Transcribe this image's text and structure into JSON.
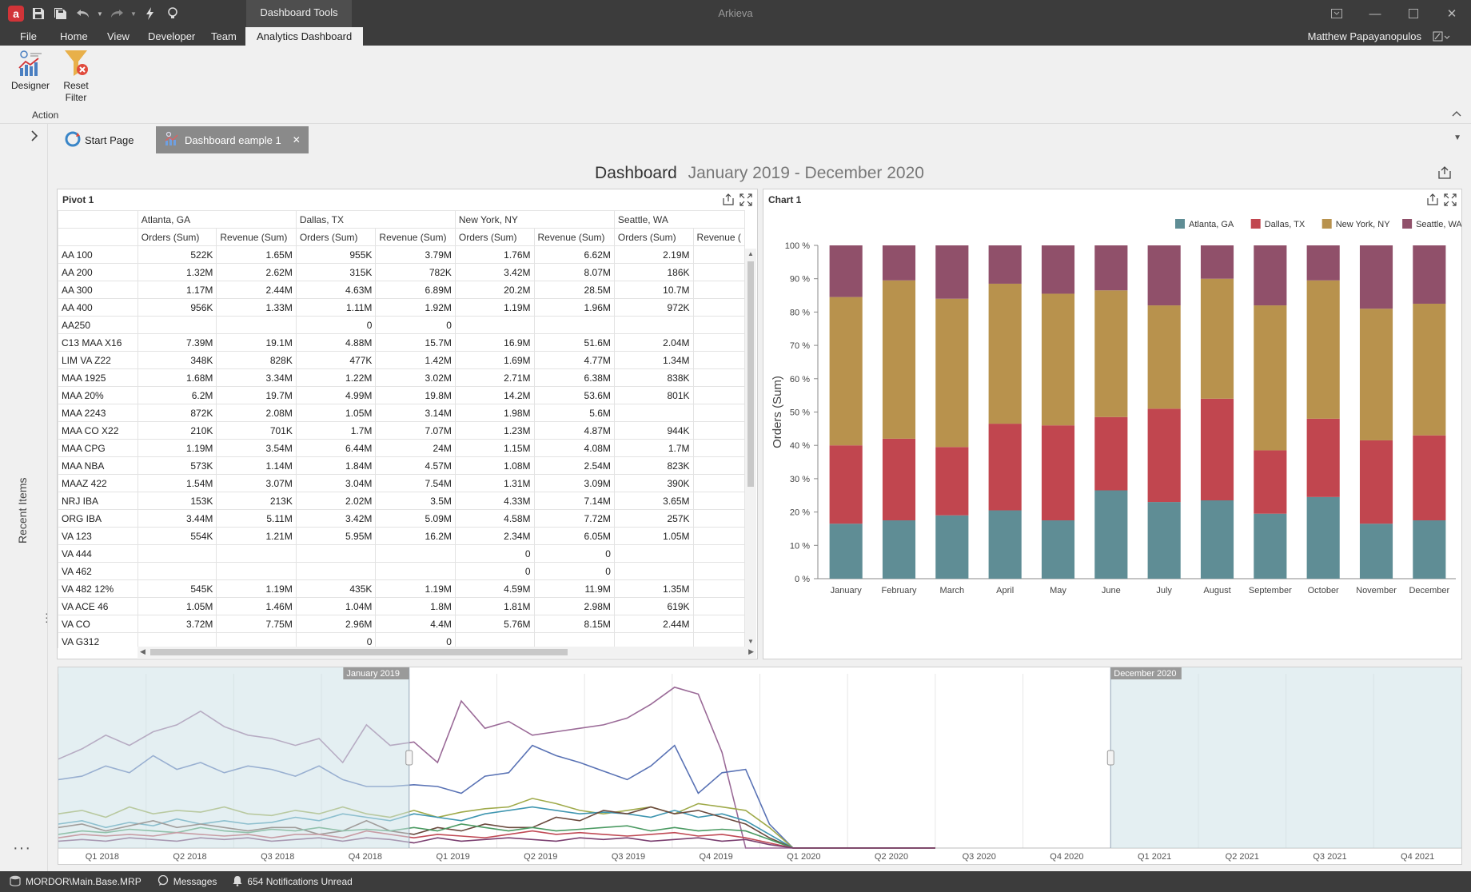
{
  "titlebar": {
    "app_title": "Arkieva",
    "contextual_tab": "Dashboard Tools",
    "logo_letter": "a"
  },
  "menu": {
    "items": [
      "File",
      "Home",
      "View",
      "Developer",
      "Team",
      "Analytics Dashboard"
    ],
    "active": "Analytics Dashboard",
    "user_name": "Matthew Papayanopulos"
  },
  "ribbon": {
    "designer_label": "Designer",
    "reset_filter_label_line1": "Reset",
    "reset_filter_label_line2": "Filter",
    "group_label": "Action"
  },
  "sidebar": {
    "recent_items_label": "Recent Items"
  },
  "tabs": {
    "start_page": "Start Page",
    "dashboard_tab": "Dashboard eample 1"
  },
  "dashboard": {
    "title": "Dashboard",
    "date_range": "January 2019 - December 2020"
  },
  "pivot": {
    "caption": "Pivot 1",
    "cities": [
      "Atlanta, GA",
      "Dallas, TX",
      "New York, NY",
      "Seattle, WA"
    ],
    "measures": [
      "Orders (Sum)",
      "Revenue (Sum)",
      "Orders (Sum)",
      "Revenue (Sum)",
      "Orders (Sum)",
      "Revenue (Sum)",
      "Orders (Sum)",
      "Revenue ("
    ],
    "rows": [
      {
        "label": "AA 100",
        "cells": [
          "522K",
          "1.65M",
          "955K",
          "3.79M",
          "1.76M",
          "6.62M",
          "2.19M",
          ""
        ]
      },
      {
        "label": "AA 200",
        "cells": [
          "1.32M",
          "2.62M",
          "315K",
          "782K",
          "3.42M",
          "8.07M",
          "186K",
          ""
        ]
      },
      {
        "label": "AA 300",
        "cells": [
          "1.17M",
          "2.44M",
          "4.63M",
          "6.89M",
          "20.2M",
          "28.5M",
          "10.7M",
          ""
        ]
      },
      {
        "label": "AA 400",
        "cells": [
          "956K",
          "1.33M",
          "1.11M",
          "1.92M",
          "1.19M",
          "1.96M",
          "972K",
          ""
        ]
      },
      {
        "label": "AA250",
        "cells": [
          "",
          "",
          "0",
          "0",
          "",
          "",
          "",
          ""
        ]
      },
      {
        "label": "C13 MAA X16",
        "cells": [
          "7.39M",
          "19.1M",
          "4.88M",
          "15.7M",
          "16.9M",
          "51.6M",
          "2.04M",
          ""
        ]
      },
      {
        "label": "LIM VA Z22",
        "cells": [
          "348K",
          "828K",
          "477K",
          "1.42M",
          "1.69M",
          "4.77M",
          "1.34M",
          ""
        ]
      },
      {
        "label": "MAA 1925",
        "cells": [
          "1.68M",
          "3.34M",
          "1.22M",
          "3.02M",
          "2.71M",
          "6.38M",
          "838K",
          ""
        ]
      },
      {
        "label": "MAA 20%",
        "cells": [
          "6.2M",
          "19.7M",
          "4.99M",
          "19.8M",
          "14.2M",
          "53.6M",
          "801K",
          ""
        ]
      },
      {
        "label": "MAA 2243",
        "cells": [
          "872K",
          "2.08M",
          "1.05M",
          "3.14M",
          "1.98M",
          "5.6M",
          "",
          ""
        ]
      },
      {
        "label": "MAA CO X22",
        "cells": [
          "210K",
          "701K",
          "1.7M",
          "7.07M",
          "1.23M",
          "4.87M",
          "944K",
          ""
        ]
      },
      {
        "label": "MAA CPG",
        "cells": [
          "1.19M",
          "3.54M",
          "6.44M",
          "24M",
          "1.15M",
          "4.08M",
          "1.7M",
          ""
        ]
      },
      {
        "label": "MAA NBA",
        "cells": [
          "573K",
          "1.14M",
          "1.84M",
          "4.57M",
          "1.08M",
          "2.54M",
          "823K",
          ""
        ]
      },
      {
        "label": "MAAZ 422",
        "cells": [
          "1.54M",
          "3.07M",
          "3.04M",
          "7.54M",
          "1.31M",
          "3.09M",
          "390K",
          ""
        ]
      },
      {
        "label": "NRJ IBA",
        "cells": [
          "153K",
          "213K",
          "2.02M",
          "3.5M",
          "4.33M",
          "7.14M",
          "3.65M",
          ""
        ]
      },
      {
        "label": "ORG IBA",
        "cells": [
          "3.44M",
          "5.11M",
          "3.42M",
          "5.09M",
          "4.58M",
          "7.72M",
          "257K",
          ""
        ]
      },
      {
        "label": "VA 123",
        "cells": [
          "554K",
          "1.21M",
          "5.95M",
          "16.2M",
          "2.34M",
          "6.05M",
          "1.05M",
          ""
        ]
      },
      {
        "label": "VA 444",
        "cells": [
          "",
          "",
          "",
          "",
          "0",
          "0",
          "",
          ""
        ]
      },
      {
        "label": "VA 462",
        "cells": [
          "",
          "",
          "",
          "",
          "0",
          "0",
          "",
          ""
        ]
      },
      {
        "label": "VA 482 12%",
        "cells": [
          "545K",
          "1.19M",
          "435K",
          "1.19M",
          "4.59M",
          "11.9M",
          "1.35M",
          ""
        ]
      },
      {
        "label": "VA ACE 46",
        "cells": [
          "1.05M",
          "1.46M",
          "1.04M",
          "1.8M",
          "1.81M",
          "2.98M",
          "619K",
          ""
        ]
      },
      {
        "label": "VA CO",
        "cells": [
          "3.72M",
          "7.75M",
          "2.96M",
          "4.4M",
          "5.76M",
          "8.15M",
          "2.44M",
          ""
        ]
      },
      {
        "label": "VA G312",
        "cells": [
          "",
          "",
          "0",
          "0",
          "",
          "",
          "",
          ""
        ]
      }
    ]
  },
  "chart": {
    "caption": "Chart 1"
  },
  "chart_data": [
    {
      "type": "bar",
      "stacked": "percent",
      "title": "Chart 1",
      "ylabel": "Orders (Sum)",
      "ylim": [
        0,
        100
      ],
      "legend_position": "top-right",
      "categories": [
        "January",
        "February",
        "March",
        "April",
        "May",
        "June",
        "July",
        "August",
        "September",
        "October",
        "November",
        "December"
      ],
      "y_ticks": [
        "0 %",
        "10 %",
        "20 %",
        "30 %",
        "40 %",
        "50 %",
        "60 %",
        "70 %",
        "80 %",
        "90 %",
        "100 %"
      ],
      "series": [
        {
          "name": "Atlanta, GA",
          "color": "#5f8d95",
          "values": [
            16.5,
            17.5,
            19,
            20.5,
            17.5,
            26.5,
            23,
            23.5,
            19.5,
            24.5,
            16.5,
            17.5
          ]
        },
        {
          "name": "Dallas, TX",
          "color": "#c1464f",
          "values": [
            23.5,
            24.5,
            20.5,
            26,
            28.5,
            22,
            28,
            30.5,
            19,
            23.5,
            25,
            25.5
          ]
        },
        {
          "name": "New York, NY",
          "color": "#b8924d",
          "values": [
            44.5,
            47.5,
            44.5,
            42,
            39.5,
            38,
            31,
            36,
            43.5,
            41.5,
            39.5,
            39.5
          ]
        },
        {
          "name": "Seattle, WA",
          "color": "#90506a",
          "values": [
            15.5,
            10.5,
            16,
            11.5,
            14.5,
            13.5,
            18,
            10,
            18,
            10.5,
            19,
            17.5
          ]
        }
      ]
    },
    {
      "type": "line",
      "role": "range-filter",
      "x_ticks": [
        "Q1 2018",
        "Q2 2018",
        "Q3 2018",
        "Q4 2018",
        "Q1 2019",
        "Q2 2019",
        "Q3 2019",
        "Q4 2019",
        "Q1 2020",
        "Q2 2020",
        "Q3 2020",
        "Q4 2020",
        "Q1 2021",
        "Q2 2021",
        "Q3 2021",
        "Q4 2021"
      ],
      "selection_start_label": "January 2019",
      "selection_end_label": "December 2020",
      "series": [
        {
          "color": "#9b6b98",
          "values": [
            52,
            58,
            66,
            60,
            68,
            72,
            80,
            71,
            66,
            64,
            60,
            64,
            50,
            72,
            60,
            62,
            50,
            86,
            70,
            74,
            66,
            68,
            70,
            72,
            76,
            84,
            94,
            90,
            56,
            0,
            0,
            0,
            0,
            0,
            0,
            0,
            0,
            0
          ]
        },
        {
          "color": "#5a73b5",
          "values": [
            40,
            42,
            48,
            44,
            54,
            46,
            50,
            44,
            48,
            46,
            42,
            48,
            40,
            36,
            36,
            37,
            36,
            32,
            42,
            44,
            60,
            54,
            50,
            45,
            40,
            48,
            60,
            32,
            44,
            46,
            14,
            0,
            0,
            0,
            0,
            0,
            0,
            0
          ]
        },
        {
          "color": "#9faa4a",
          "values": [
            20,
            22,
            18,
            24,
            20,
            22,
            21,
            24,
            20,
            19,
            22,
            20,
            24,
            20,
            18,
            22,
            18,
            21,
            23,
            24,
            29,
            26,
            22,
            20,
            22,
            24,
            20,
            26,
            24,
            22,
            12,
            0,
            0,
            0,
            0,
            0,
            0,
            0
          ]
        },
        {
          "color": "#3f96b0",
          "values": [
            14,
            16,
            12,
            15,
            13,
            17,
            14,
            16,
            14,
            15,
            18,
            16,
            20,
            18,
            16,
            20,
            18,
            16,
            20,
            22,
            24,
            22,
            20,
            21,
            20,
            18,
            22,
            18,
            20,
            16,
            8,
            0,
            0,
            0,
            0,
            0,
            0,
            0
          ]
        },
        {
          "color": "#6b4a3e",
          "values": [
            12,
            14,
            10,
            13,
            16,
            12,
            14,
            12,
            10,
            12,
            12,
            8,
            10,
            16,
            10,
            8,
            12,
            10,
            14,
            12,
            12,
            18,
            16,
            22,
            20,
            24,
            20,
            22,
            18,
            14,
            6,
            0,
            0,
            0,
            0,
            0,
            0,
            0
          ]
        },
        {
          "color": "#4b9a62",
          "values": [
            8,
            10,
            9,
            11,
            10,
            9,
            12,
            10,
            9,
            11,
            10,
            12,
            10,
            11,
            10,
            12,
            10,
            14,
            12,
            10,
            12,
            10,
            11,
            12,
            13,
            10,
            12,
            10,
            11,
            10,
            5,
            0,
            0,
            0,
            0,
            0,
            0,
            0
          ]
        },
        {
          "color": "#c04a55",
          "values": [
            6,
            8,
            7,
            8,
            7,
            9,
            8,
            7,
            8,
            6,
            8,
            8,
            6,
            10,
            8,
            6,
            8,
            7,
            6,
            8,
            10,
            8,
            9,
            8,
            7,
            8,
            9,
            7,
            8,
            6,
            3,
            0,
            0,
            0,
            0,
            0,
            0,
            0
          ]
        },
        {
          "color": "#7a3f70",
          "values": [
            4,
            5,
            4,
            6,
            5,
            4,
            6,
            5,
            6,
            4,
            5,
            6,
            4,
            6,
            5,
            3,
            6,
            4,
            5,
            6,
            5,
            4,
            6,
            5,
            6,
            4,
            5,
            6,
            4,
            5,
            2,
            0,
            0,
            0,
            0,
            0,
            0,
            0
          ]
        }
      ]
    }
  ],
  "statusbar": {
    "connection": "MORDOR\\Main.Base.MRP",
    "messages": "Messages",
    "notifications": "654 Notifications Unread"
  }
}
